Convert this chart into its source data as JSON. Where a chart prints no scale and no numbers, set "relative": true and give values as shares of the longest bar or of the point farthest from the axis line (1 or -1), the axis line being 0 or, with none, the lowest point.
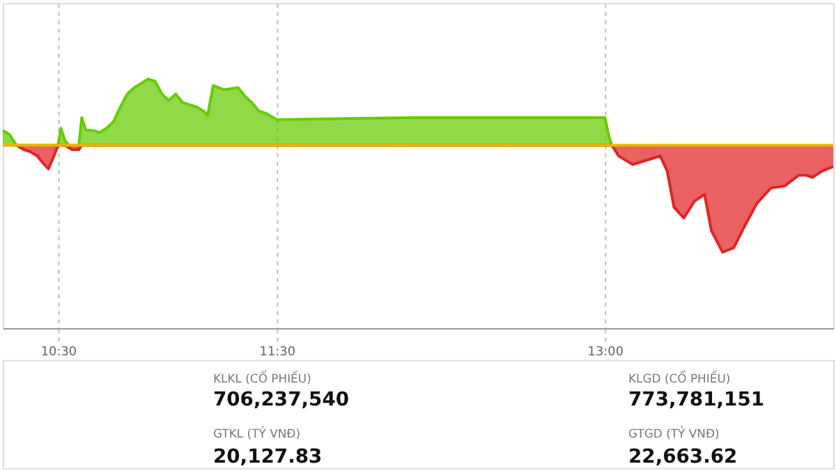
{
  "chart_data": {
    "type": "area",
    "relative": true,
    "grid": true,
    "xlim": [
      10.247,
      14.044
    ],
    "xticks": [
      {
        "value": 10.5,
        "label": "10:30"
      },
      {
        "value": 11.5,
        "label": "11:30"
      },
      {
        "value": 13.0,
        "label": "13:00"
      }
    ],
    "series": [
      {
        "color": "#66cc00",
        "x": [
          10.247,
          10.278,
          10.31,
          10.4,
          10.5,
          10.513,
          10.532,
          10.551,
          10.575,
          10.595,
          10.608,
          10.627,
          10.658,
          10.69,
          10.722,
          10.753,
          10.785,
          10.816,
          10.848,
          10.88,
          10.911,
          10.943,
          10.975,
          11.006,
          11.038,
          11.07,
          11.101,
          11.133,
          11.165,
          11.184,
          11.209,
          11.259,
          11.323,
          11.354,
          11.386,
          11.418,
          11.449,
          11.5,
          12.146,
          13.0,
          13.019,
          13.032
        ],
        "values": [
          0.14,
          0.1,
          0,
          0,
          0,
          0.16,
          0.04,
          0,
          0,
          0,
          0.26,
          0.14,
          0.14,
          0.12,
          0.16,
          0.22,
          0.36,
          0.48,
          0.54,
          0.58,
          0.62,
          0.6,
          0.48,
          0.42,
          0.48,
          0.4,
          0.38,
          0.36,
          0.32,
          0.28,
          0.56,
          0.52,
          0.54,
          0.46,
          0.4,
          0.32,
          0.3,
          0.24,
          0.26,
          0.26,
          0.08,
          0
        ]
      },
      {
        "color": "#e02424",
        "x": [
          10.31,
          10.342,
          10.373,
          10.405,
          10.437,
          10.456,
          10.481,
          10.5,
          10.52,
          10.532,
          10.563,
          10.595,
          10.608,
          12.0,
          13.032,
          13.063,
          13.127,
          13.19,
          13.253,
          13.285,
          13.316,
          13.361,
          13.411,
          13.456,
          13.487,
          13.538,
          13.589,
          13.633,
          13.696,
          13.759,
          13.823,
          13.886,
          13.918,
          13.949,
          13.994,
          14.044
        ],
        "values": [
          0,
          -0.04,
          -0.06,
          -0.1,
          -0.18,
          -0.22,
          -0.1,
          0,
          0,
          0,
          -0.04,
          -0.04,
          0,
          0,
          0,
          -0.1,
          -0.18,
          -0.14,
          -0.1,
          -0.24,
          -0.58,
          -0.68,
          -0.52,
          -0.46,
          -0.8,
          -1,
          -0.96,
          -0.78,
          -0.54,
          -0.4,
          -0.38,
          -0.28,
          -0.28,
          -0.3,
          -0.24,
          -0.2
        ]
      }
    ],
    "ref_lines": [
      {
        "axis": "y",
        "value": 0,
        "color": "#e6b800"
      }
    ],
    "annotations": [
      "KLKL (CỔ PHIẾU)",
      "706,237,540",
      "GTKL (TỶ VNĐ)",
      "20,127.83",
      "KLGD (CỔ PHIẾU)",
      "773,781,151",
      "GTGD (TỶ VNĐ)",
      "22,663.62"
    ]
  }
}
